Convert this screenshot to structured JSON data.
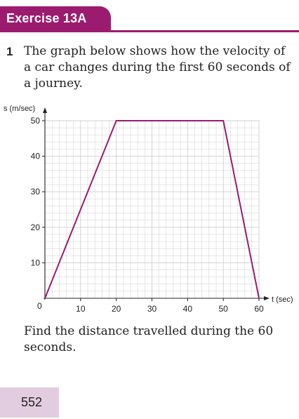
{
  "header": {
    "title": "Exercise 13A",
    "accent_color": "#9b1c6e"
  },
  "question": {
    "number": "1",
    "text": "The graph below shows how the velocity of a car changes during the first 60 seconds of a journey.",
    "follow_up": "Find the distance travelled during the 60 seconds."
  },
  "chart_data": {
    "type": "line",
    "ylabel": "s (m/sec)",
    "xlabel": "t (sec)",
    "origin_label": "0",
    "xlim": [
      0,
      60
    ],
    "ylim": [
      0,
      50
    ],
    "x_ticks": [
      10,
      20,
      30,
      40,
      50,
      60
    ],
    "y_ticks": [
      10,
      20,
      30,
      40,
      50
    ],
    "grid": true,
    "series": [
      {
        "x": [
          0,
          20,
          50,
          60
        ],
        "y": [
          0,
          50,
          50,
          0
        ],
        "color": "#9b1c6e"
      }
    ]
  },
  "footer": {
    "page_number": "552",
    "box_color": "#e2cde0"
  }
}
